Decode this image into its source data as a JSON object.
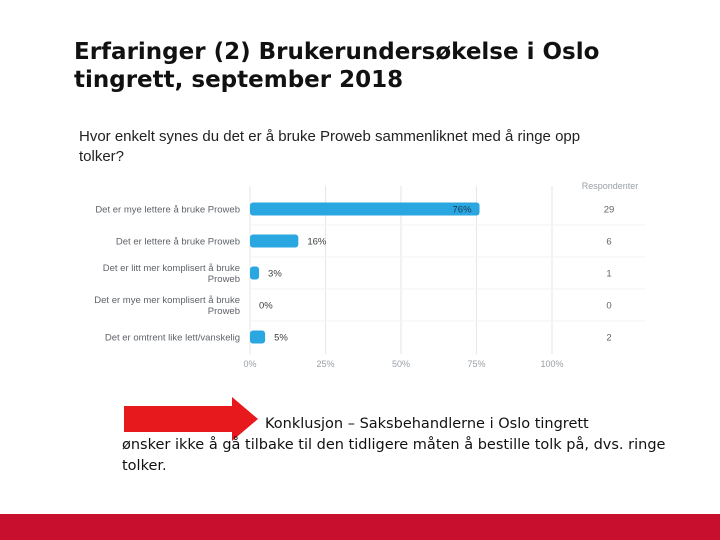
{
  "slide": {
    "title": "Erfaringer (2) Brukerundersøkelse i Oslo tingrett, september 2018",
    "question": "Hvor enkelt synes du det er å bruke Proweb sammenliknet med å ringe opp tolker?",
    "conclusion_line1": "Konklusjon – Saksbehandlerne i Oslo tingrett",
    "conclusion_rest": "ønsker ikke å gå tilbake til den tidligere måten å bestille tolk på, dvs. ringe tolker."
  },
  "colors": {
    "bar": "#2aa6e0",
    "track": "#eef1f4",
    "arrow": "#e8191d",
    "footer": "#c8102e"
  },
  "chart_data": {
    "type": "bar",
    "orientation": "horizontal",
    "categories": [
      "Det er mye lettere å bruke Proweb",
      "Det er lettere å bruke Proweb",
      "Det er litt mer komplisert å bruke Proweb",
      "Det er mye mer komplisert å bruke Proweb",
      "Det er omtrent like lett/vanskelig"
    ],
    "values": [
      76,
      16,
      3,
      0,
      5
    ],
    "value_labels": [
      "76%",
      "16%",
      "3%",
      "0%",
      "5%"
    ],
    "respondents_header": "Respondenter",
    "respondents": [
      "29",
      "6",
      "1",
      "0",
      "2"
    ],
    "x_ticks": [
      0,
      25,
      50,
      75,
      100
    ],
    "x_tick_labels": [
      "0%",
      "25%",
      "50%",
      "75%",
      "100%"
    ],
    "xlim": [
      0,
      100
    ],
    "grid": true
  }
}
